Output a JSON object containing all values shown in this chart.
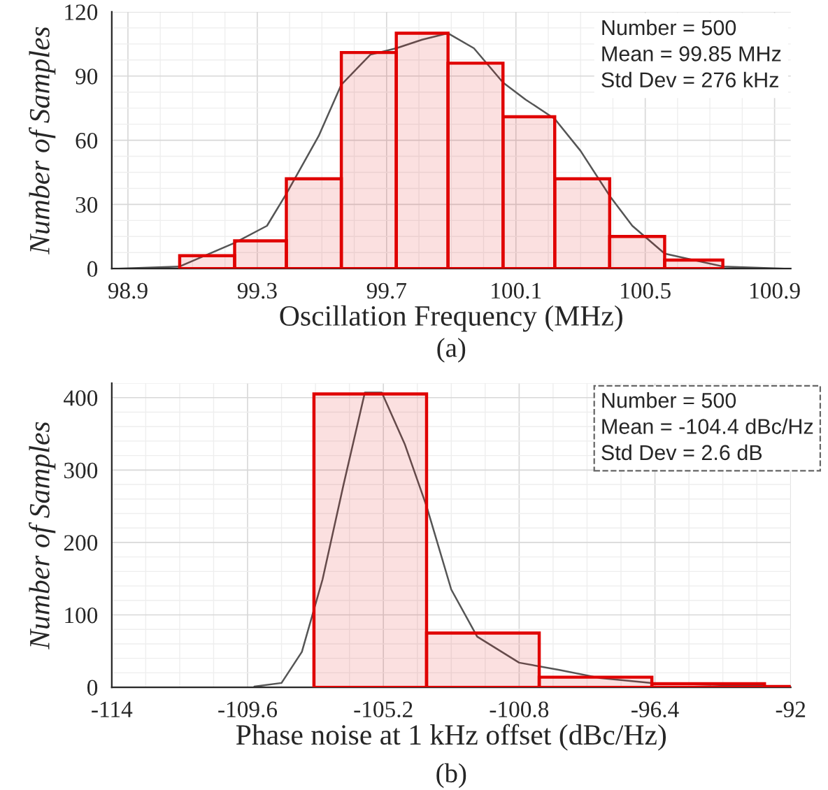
{
  "chart_data": [
    {
      "type": "histogram",
      "xlabel": "Oscillation Frequency (MHz)",
      "ylabel": "Number of Samples",
      "series": [
        {
          "color": "#e00000",
          "bins": [
            99.06,
            99.23,
            99.39,
            99.56,
            99.73,
            99.89,
            100.06,
            100.22,
            100.39,
            100.56,
            100.74
          ],
          "values": [
            6,
            13,
            42,
            101,
            110,
            96,
            71,
            42,
            15,
            4
          ]
        },
        {
          "type": "line",
          "color": "#555555",
          "x": [
            98.87,
            99.06,
            99.23,
            99.33,
            99.39,
            99.49,
            99.56,
            99.65,
            99.73,
            99.81,
            99.89,
            99.97,
            100.06,
            100.13,
            100.22,
            100.3,
            100.39,
            100.46,
            100.56,
            100.74,
            100.93
          ],
          "values": [
            0,
            1,
            12,
            20,
            35,
            62,
            86,
            100,
            103,
            107,
            110,
            103,
            87,
            79,
            70,
            55,
            34,
            20,
            7,
            1,
            0
          ]
        }
      ],
      "xlim": [
        98.85,
        100.95
      ],
      "xticks": [
        98.9,
        99.3,
        99.7,
        100.1,
        100.5,
        100.9
      ],
      "ylim": [
        0,
        120
      ],
      "yticks": [
        0,
        30,
        60,
        90,
        120
      ],
      "grid": true,
      "annotations": [
        "Number = 500\nMean = 99.85 MHz\nStd Dev = 276 kHz",
        "(a)"
      ]
    },
    {
      "type": "histogram",
      "xlabel": "Phase noise at 1 kHz offset (dBc/Hz)",
      "ylabel": "Number of Samples",
      "series": [
        {
          "color": "#e00000",
          "bins": [
            -107.45,
            -103.8,
            -100.15,
            -96.5,
            -92.85,
            -92
          ],
          "values": [
            405,
            75,
            14,
            5,
            1
          ]
        },
        {
          "type": "line",
          "color": "#555555",
          "x": [
            -109.38,
            -108.5,
            -107.84,
            -107.17,
            -106.5,
            -105.8,
            -105.25,
            -104.5,
            -103.8,
            -103.0,
            -102.16,
            -100.8,
            -99.5,
            -98.2,
            -96.5,
            -94.1,
            -92.0
          ],
          "values": [
            1,
            6,
            49,
            149,
            278,
            407,
            407,
            335,
            250,
            135,
            70,
            34,
            24,
            13,
            6,
            3,
            1
          ]
        }
      ],
      "xlim": [
        -114,
        -92
      ],
      "xticks": [
        -114,
        -109.6,
        -105.2,
        -100.8,
        -96.4,
        -92
      ],
      "ylim": [
        0,
        420
      ],
      "yticks": [
        0,
        100,
        200,
        300,
        400
      ],
      "grid": true,
      "annotations": [
        "Number = 500\nMean = -104.4 dBc/Hz\nStd Dev = 2.6 dB",
        "(b)"
      ]
    }
  ]
}
